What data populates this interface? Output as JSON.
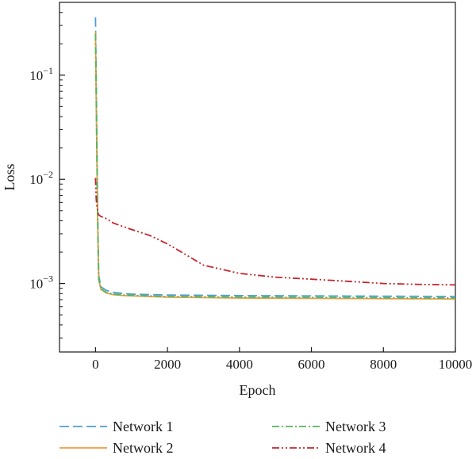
{
  "chart_data": {
    "type": "line",
    "title": "",
    "xlabel": "Epoch",
    "ylabel": "Loss",
    "xscale": "linear",
    "yscale": "log",
    "xlim": [
      -1000,
      10000
    ],
    "ylim": [
      0.00022,
      0.5
    ],
    "xticks": [
      0,
      2000,
      4000,
      6000,
      8000,
      10000
    ],
    "xtick_labels": [
      "0",
      "2000",
      "4000",
      "6000",
      "8000",
      "10000"
    ],
    "yticks": [
      0.001,
      0.01,
      0.1
    ],
    "ytick_labels": [
      {
        "base": "10",
        "exp": "−3"
      },
      {
        "base": "10",
        "exp": "−2"
      },
      {
        "base": "10",
        "exp": "−1"
      }
    ],
    "grid": false,
    "legend_position": "bottom",
    "series": [
      {
        "name": "Network 1",
        "color": "#4f9ed6",
        "dash": "long-dash",
        "points": [
          [
            0,
            0.36
          ],
          [
            30,
            0.05
          ],
          [
            60,
            0.005
          ],
          [
            90,
            0.0012
          ],
          [
            150,
            0.00093
          ],
          [
            300,
            0.00086
          ],
          [
            500,
            0.00082
          ],
          [
            800,
            0.0008
          ],
          [
            1000,
            0.00079
          ],
          [
            2000,
            0.000775
          ],
          [
            4000,
            0.000765
          ],
          [
            6000,
            0.00076
          ],
          [
            8000,
            0.000755
          ],
          [
            10000,
            0.00075
          ]
        ]
      },
      {
        "name": "Network 2",
        "color": "#ef9d3f",
        "dash": "solid",
        "points": [
          [
            0,
            0.26
          ],
          [
            30,
            0.03
          ],
          [
            60,
            0.004
          ],
          [
            90,
            0.0011
          ],
          [
            150,
            0.00088
          ],
          [
            300,
            0.00081
          ],
          [
            500,
            0.00078
          ],
          [
            800,
            0.000765
          ],
          [
            1000,
            0.00076
          ],
          [
            2000,
            0.00074
          ],
          [
            4000,
            0.000725
          ],
          [
            6000,
            0.00072
          ],
          [
            8000,
            0.000715
          ],
          [
            10000,
            0.00071
          ]
        ]
      },
      {
        "name": "Network 3",
        "color": "#55b55a",
        "dash": "dash-dot",
        "points": [
          [
            0,
            0.25
          ],
          [
            30,
            0.03
          ],
          [
            60,
            0.004
          ],
          [
            90,
            0.0011
          ],
          [
            150,
            0.00089
          ],
          [
            300,
            0.00082
          ],
          [
            500,
            0.00079
          ],
          [
            800,
            0.000775
          ],
          [
            1000,
            0.00077
          ],
          [
            2000,
            0.00075
          ],
          [
            4000,
            0.00074
          ],
          [
            6000,
            0.000735
          ],
          [
            8000,
            0.00073
          ],
          [
            10000,
            0.000725
          ]
        ]
      },
      {
        "name": "Network 4",
        "color": "#c4242b",
        "dash": "dash-dot-dot",
        "points": [
          [
            0,
            0.0103
          ],
          [
            20,
            0.0065
          ],
          [
            40,
            0.0055
          ],
          [
            80,
            0.0046
          ],
          [
            150,
            0.0044
          ],
          [
            300,
            0.0042
          ],
          [
            500,
            0.0038
          ],
          [
            1000,
            0.0033
          ],
          [
            1500,
            0.0029
          ],
          [
            2000,
            0.0024
          ],
          [
            2500,
            0.0019
          ],
          [
            3000,
            0.0015
          ],
          [
            4000,
            0.00125
          ],
          [
            5000,
            0.00115
          ],
          [
            6000,
            0.0011
          ],
          [
            7000,
            0.00105
          ],
          [
            8000,
            0.001
          ],
          [
            9000,
            0.00098
          ],
          [
            10000,
            0.00097
          ]
        ]
      }
    ]
  }
}
